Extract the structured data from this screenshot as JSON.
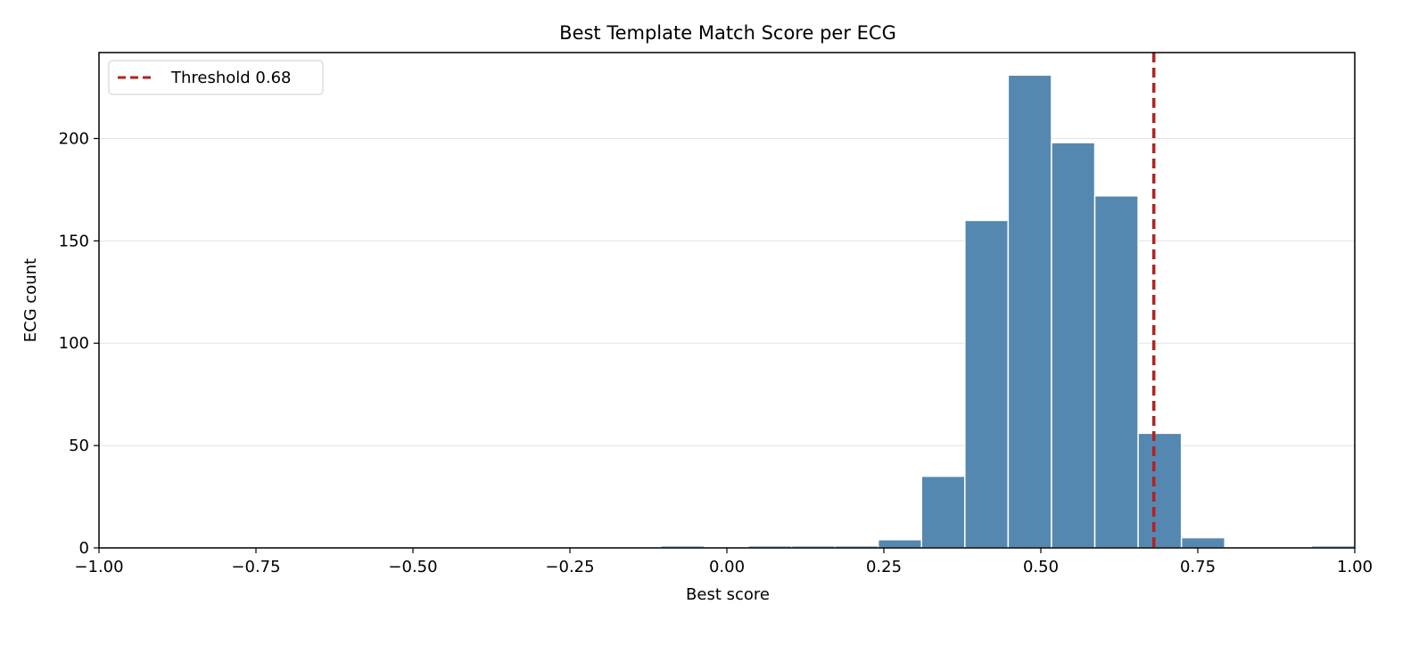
{
  "chart_data": {
    "type": "bar",
    "title": "Best Template Match Score per ECG",
    "xlabel": "Best score",
    "ylabel": "ECG count",
    "xlim": [
      -1.0,
      1.0
    ],
    "ylim": [
      0,
      242
    ],
    "xticks": [
      "−1.00",
      "−0.75",
      "−0.50",
      "−0.25",
      "0.00",
      "0.25",
      "0.50",
      "0.75",
      "1.00"
    ],
    "xtick_values": [
      -1.0,
      -0.75,
      -0.5,
      -0.25,
      0.0,
      0.25,
      0.5,
      0.75,
      1.0
    ],
    "yticks": [
      "0",
      "50",
      "100",
      "150",
      "200"
    ],
    "ytick_values": [
      0,
      50,
      100,
      150,
      200
    ],
    "grid": "horizontal",
    "bar_color": "#5588b0",
    "bins": [
      {
        "start": -0.105,
        "end": -0.036,
        "count": 1
      },
      {
        "start": 0.034,
        "end": 0.103,
        "count": 1
      },
      {
        "start": 0.103,
        "end": 0.172,
        "count": 1
      },
      {
        "start": 0.172,
        "end": 0.241,
        "count": 1
      },
      {
        "start": 0.241,
        "end": 0.31,
        "count": 4
      },
      {
        "start": 0.31,
        "end": 0.379,
        "count": 35
      },
      {
        "start": 0.379,
        "end": 0.448,
        "count": 160
      },
      {
        "start": 0.448,
        "end": 0.517,
        "count": 231
      },
      {
        "start": 0.517,
        "end": 0.586,
        "count": 198
      },
      {
        "start": 0.586,
        "end": 0.655,
        "count": 172
      },
      {
        "start": 0.655,
        "end": 0.724,
        "count": 56
      },
      {
        "start": 0.724,
        "end": 0.793,
        "count": 5
      },
      {
        "start": 0.931,
        "end": 1.0,
        "count": 1
      }
    ],
    "threshold": {
      "value": 0.68,
      "label": "Threshold 0.68",
      "color": "#b22222"
    },
    "legend": {
      "placement": "top-left",
      "entries": [
        "Threshold 0.68"
      ]
    }
  }
}
